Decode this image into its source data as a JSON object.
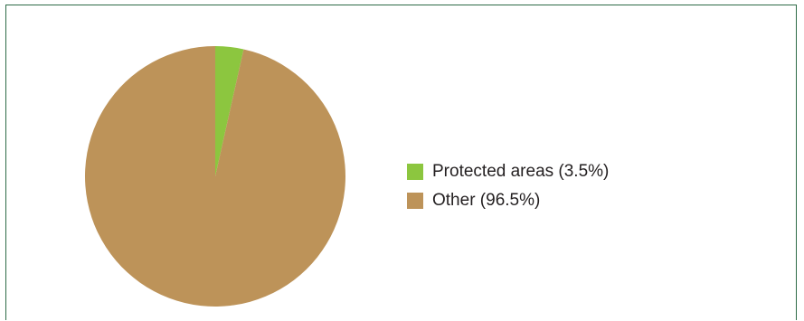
{
  "chart_data": {
    "type": "pie",
    "title": "",
    "start_angle_deg": 0,
    "direction": "clockwise",
    "slices": [
      {
        "label": "Protected areas (3.5%)",
        "value": 3.5,
        "color": "#8cc63f"
      },
      {
        "label": "Other (96.5%)",
        "value": 96.5,
        "color": "#bd9359"
      }
    ],
    "legend_position": "right"
  },
  "colors": {
    "frame_border": "#2e6b47",
    "background": "#ffffff"
  }
}
